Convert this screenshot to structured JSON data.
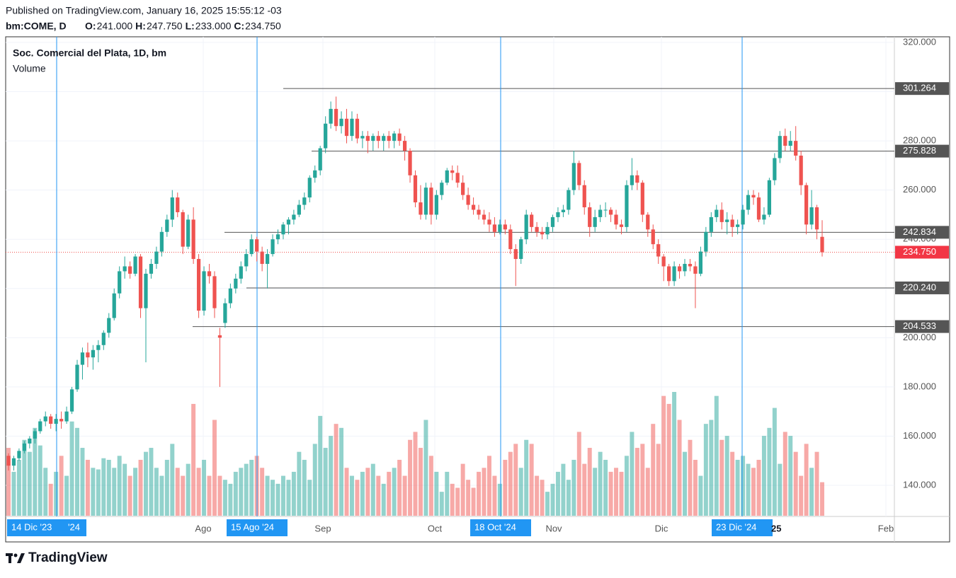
{
  "header": {
    "published": "Published on TradingView.com, January 16, 2025 15:55:12 -03",
    "symbol": "bm:COME, D",
    "ohlc": [
      {
        "label": "O:",
        "value": "241.000"
      },
      {
        "label": "H:",
        "value": "247.750"
      },
      {
        "label": "L:",
        "value": "233.000"
      },
      {
        "label": "C:",
        "value": "234.750"
      }
    ]
  },
  "chart_data": {
    "type": "candlestick",
    "title": "Soc. Comercial del Plata, 1D, bm",
    "volume_label": "Volume",
    "ylim": [
      127.35,
      322.3
    ],
    "yticks": [
      {
        "value": 140,
        "label": "140.000"
      },
      {
        "value": 160,
        "label": "160.000"
      },
      {
        "value": 180,
        "label": "180.000"
      },
      {
        "value": 200,
        "label": "200.000"
      },
      {
        "value": 220,
        "label": "220.000"
      },
      {
        "value": 240,
        "label": "240.000"
      },
      {
        "value": 260,
        "label": "260.000"
      },
      {
        "value": 280,
        "label": "280.000"
      },
      {
        "value": 300,
        "label": "300.000"
      },
      {
        "value": 320,
        "label": "320.000"
      }
    ],
    "up_color": "#26a69a",
    "down_color": "#ef5350",
    "grid": true,
    "levels": [
      {
        "value": 301.264,
        "label": "301.264"
      },
      {
        "value": 275.828,
        "label": "275.828"
      },
      {
        "value": 242.834,
        "label": "242.834"
      },
      {
        "value": 220.24,
        "label": "220.240"
      },
      {
        "value": 204.533,
        "label": "204.533"
      }
    ],
    "last_price": {
      "value": 234.75,
      "label": "234.750"
    },
    "months": [
      "Ago",
      "Sep",
      "Oct",
      "Nov",
      "Dic",
      "Feb"
    ],
    "markers": [
      "14 Dic '23",
      "15 Ago '24",
      "18 Oct '24",
      "23 Dic '24"
    ],
    "partial_labels": [
      "'24",
      "25"
    ],
    "ohlc": [
      [
        152,
        153,
        146,
        148
      ],
      [
        148,
        152,
        146,
        151
      ],
      [
        151,
        155,
        150,
        154
      ],
      [
        154,
        158,
        153,
        157
      ],
      [
        157,
        160,
        155,
        159
      ],
      [
        159,
        163,
        157,
        162
      ],
      [
        162,
        167,
        161,
        166
      ],
      [
        166,
        170,
        164,
        168
      ],
      [
        168,
        169,
        163,
        165
      ],
      [
        165,
        169,
        162,
        167
      ],
      [
        167,
        170,
        163,
        166
      ],
      [
        166,
        172,
        165,
        170
      ],
      [
        170,
        180,
        169,
        179
      ],
      [
        179,
        191,
        178,
        189
      ],
      [
        189,
        196,
        183,
        194
      ],
      [
        194,
        198,
        188,
        192
      ],
      [
        192,
        197,
        187,
        195
      ],
      [
        195,
        199,
        190,
        197
      ],
      [
        197,
        203,
        195,
        202
      ],
      [
        202,
        210,
        200,
        208
      ],
      [
        208,
        220,
        207,
        218
      ],
      [
        218,
        229,
        216,
        227
      ],
      [
        227,
        233,
        224,
        229
      ],
      [
        229,
        231,
        224,
        226
      ],
      [
        226,
        234,
        225,
        233
      ],
      [
        233,
        234,
        208,
        212
      ],
      [
        212,
        228,
        190,
        226
      ],
      [
        226,
        232,
        224,
        230
      ],
      [
        230,
        237,
        228,
        235
      ],
      [
        235,
        245,
        233,
        243
      ],
      [
        243,
        250,
        241,
        248
      ],
      [
        248,
        260,
        245,
        257
      ],
      [
        257,
        259,
        249,
        251
      ],
      [
        251,
        252,
        234,
        237
      ],
      [
        237,
        250,
        236,
        248
      ],
      [
        248,
        253,
        230,
        232
      ],
      [
        232,
        234,
        208,
        211
      ],
      [
        211,
        229,
        209,
        227
      ],
      [
        227,
        230,
        222,
        225
      ],
      [
        225,
        227,
        208,
        212
      ],
      [
        201,
        204,
        180,
        200
      ],
      [
        206,
        216,
        204,
        214
      ],
      [
        214,
        222,
        212,
        220
      ],
      [
        220,
        226,
        218,
        224
      ],
      [
        224,
        231,
        222,
        229
      ],
      [
        229,
        236,
        227,
        234
      ],
      [
        234,
        242,
        233,
        240
      ],
      [
        240,
        241,
        231,
        235
      ],
      [
        235,
        237,
        227,
        230
      ],
      [
        230,
        236,
        220,
        234
      ],
      [
        234,
        242,
        233,
        240
      ],
      [
        240,
        244,
        238,
        242
      ],
      [
        242,
        247,
        240,
        246
      ],
      [
        246,
        249,
        242,
        248
      ],
      [
        248,
        252,
        246,
        250
      ],
      [
        250,
        256,
        249,
        254
      ],
      [
        254,
        259,
        252,
        257
      ],
      [
        257,
        266,
        255,
        265
      ],
      [
        265,
        270,
        263,
        268
      ],
      [
        268,
        278,
        266,
        277
      ],
      [
        277,
        290,
        275,
        287
      ],
      [
        287,
        296,
        285,
        293
      ],
      [
        293,
        298,
        284,
        286
      ],
      [
        286,
        292,
        283,
        289
      ],
      [
        289,
        293,
        279,
        282
      ],
      [
        282,
        292,
        280,
        289
      ],
      [
        289,
        291,
        279,
        281
      ],
      [
        281,
        284,
        277,
        282
      ],
      [
        282,
        284,
        275,
        280
      ],
      [
        280,
        283,
        276,
        282
      ],
      [
        282,
        284,
        277,
        280
      ],
      [
        280,
        283,
        276,
        282
      ],
      [
        282,
        284,
        277,
        280
      ],
      [
        280,
        284,
        277,
        283
      ],
      [
        283,
        285,
        278,
        280
      ],
      [
        280,
        282,
        272,
        276
      ],
      [
        276,
        277,
        263,
        266
      ],
      [
        266,
        268,
        253,
        255
      ],
      [
        255,
        262,
        248,
        250
      ],
      [
        250,
        263,
        248,
        261
      ],
      [
        261,
        263,
        246,
        250
      ],
      [
        250,
        260,
        248,
        258
      ],
      [
        258,
        264,
        256,
        263
      ],
      [
        263,
        269,
        262,
        268
      ],
      [
        268,
        270,
        264,
        267
      ],
      [
        267,
        270,
        261,
        263
      ],
      [
        263,
        266,
        256,
        258
      ],
      [
        258,
        261,
        252,
        254
      ],
      [
        254,
        257,
        250,
        252
      ],
      [
        252,
        254,
        248,
        250
      ],
      [
        250,
        252,
        246,
        248
      ],
      [
        248,
        251,
        243,
        246
      ],
      [
        246,
        249,
        241,
        243
      ],
      [
        243,
        248,
        242,
        246
      ],
      [
        246,
        248,
        242,
        244
      ],
      [
        244,
        246,
        234,
        236
      ],
      [
        236,
        238,
        221,
        232
      ],
      [
        232,
        241,
        230,
        240
      ],
      [
        240,
        252,
        238,
        250
      ],
      [
        250,
        251,
        243,
        245
      ],
      [
        245,
        247,
        241,
        243
      ],
      [
        243,
        245,
        240,
        242
      ],
      [
        242,
        247,
        240,
        245
      ],
      [
        245,
        250,
        243,
        249
      ],
      [
        249,
        253,
        247,
        251
      ],
      [
        251,
        254,
        249,
        252
      ],
      [
        252,
        261,
        250,
        260
      ],
      [
        260,
        276,
        258,
        271
      ],
      [
        271,
        272,
        260,
        262
      ],
      [
        262,
        264,
        250,
        253
      ],
      [
        253,
        255,
        241,
        245
      ],
      [
        245,
        252,
        243,
        249
      ],
      [
        249,
        254,
        247,
        252
      ],
      [
        252,
        255,
        249,
        252
      ],
      [
        252,
        253,
        247,
        250
      ],
      [
        250,
        252,
        244,
        246
      ],
      [
        246,
        248,
        242,
        245
      ],
      [
        245,
        264,
        243,
        262
      ],
      [
        262,
        273,
        260,
        266
      ],
      [
        266,
        268,
        260,
        263
      ],
      [
        263,
        264,
        247,
        250
      ],
      [
        250,
        251,
        241,
        244
      ],
      [
        244,
        246,
        236,
        238
      ],
      [
        238,
        240,
        230,
        233
      ],
      [
        233,
        234,
        223,
        229
      ],
      [
        229,
        230,
        221,
        223
      ],
      [
        223,
        231,
        221,
        229
      ],
      [
        229,
        230,
        224,
        227
      ],
      [
        227,
        232,
        225,
        230
      ],
      [
        230,
        232,
        227,
        229
      ],
      [
        229,
        231,
        212,
        226
      ],
      [
        226,
        237,
        225,
        235
      ],
      [
        235,
        245,
        233,
        243
      ],
      [
        243,
        251,
        241,
        249
      ],
      [
        249,
        254,
        247,
        252
      ],
      [
        252,
        255,
        244,
        247
      ],
      [
        247,
        251,
        242,
        248
      ],
      [
        248,
        250,
        241,
        245
      ],
      [
        245,
        248,
        242,
        246
      ],
      [
        246,
        254,
        244,
        252
      ],
      [
        252,
        260,
        250,
        258
      ],
      [
        258,
        260,
        254,
        257
      ],
      [
        257,
        259,
        247,
        248
      ],
      [
        248,
        253,
        246,
        250
      ],
      [
        250,
        265,
        249,
        264
      ],
      [
        264,
        275,
        262,
        273
      ],
      [
        273,
        284,
        271,
        282
      ],
      [
        282,
        285,
        276,
        278
      ],
      [
        278,
        284,
        276,
        280
      ],
      [
        280,
        286,
        272,
        274
      ],
      [
        274,
        276,
        258,
        262
      ],
      [
        262,
        263,
        242,
        246
      ],
      [
        246,
        260,
        244,
        253
      ],
      [
        253,
        254,
        240,
        244
      ],
      [
        241,
        247.75,
        233,
        234.75
      ]
    ],
    "volume": [
      85,
      55,
      70,
      95,
      80,
      110,
      88,
      60,
      40,
      55,
      75,
      50,
      118,
      110,
      85,
      70,
      60,
      58,
      72,
      70,
      60,
      75,
      65,
      50,
      60,
      70,
      80,
      85,
      60,
      50,
      70,
      90,
      60,
      50,
      65,
      140,
      60,
      70,
      50,
      120,
      50,
      45,
      40,
      55,
      60,
      65,
      70,
      75,
      60,
      50,
      45,
      40,
      50,
      45,
      55,
      80,
      70,
      45,
      90,
      125,
      85,
      100,
      115,
      110,
      60,
      50,
      45,
      55,
      60,
      65,
      50,
      40,
      55,
      60,
      70,
      50,
      95,
      105,
      85,
      120,
      75,
      55,
      30,
      55,
      40,
      35,
      65,
      45,
      35,
      55,
      60,
      75,
      50,
      40,
      70,
      80,
      90,
      60,
      95,
      90,
      50,
      45,
      30,
      40,
      55,
      65,
      45,
      70,
      105,
      65,
      85,
      60,
      80,
      70,
      55,
      60,
      55,
      75,
      105,
      85,
      90,
      60,
      115,
      90,
      150,
      140,
      155,
      120,
      80,
      95,
      70,
      50,
      115,
      120,
      150,
      95,
      100,
      80,
      70,
      75,
      65,
      60,
      70,
      100,
      110,
      135,
      65,
      105,
      100,
      80,
      50,
      90,
      60,
      80,
      42
    ]
  },
  "footer": {
    "brand": "TradingView"
  }
}
